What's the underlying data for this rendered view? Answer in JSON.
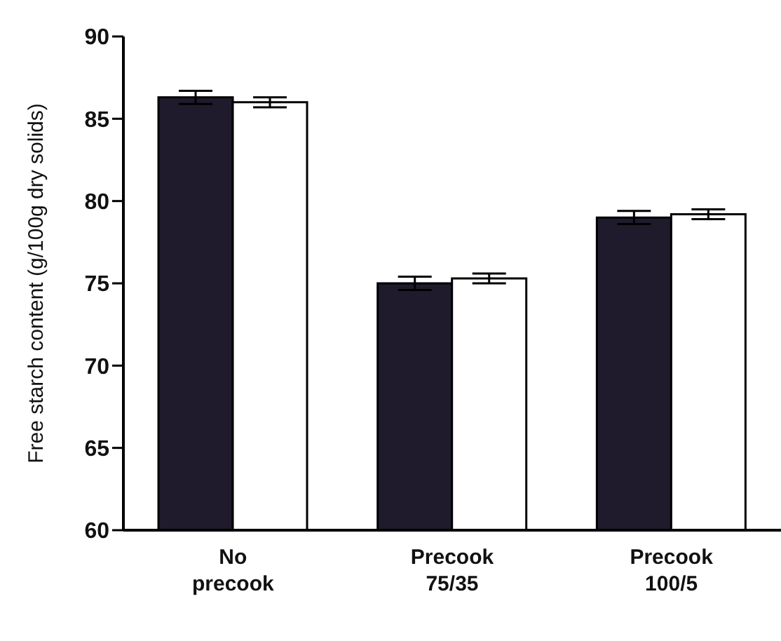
{
  "chart_data": {
    "type": "bar",
    "ylabel": "Free starch content (g/100g dry solids)",
    "categories": [
      "No precook",
      "Precook 75/35",
      "Precook 100/5"
    ],
    "series": [
      {
        "color": "#1f1b2c",
        "values": [
          86.3,
          75.0,
          79.0
        ],
        "errors": [
          0.4,
          0.4,
          0.4
        ]
      },
      {
        "color": "#ffffff",
        "values": [
          86.0,
          75.3,
          79.2
        ],
        "errors": [
          0.3,
          0.3,
          0.3
        ]
      }
    ],
    "ylim": [
      60,
      90
    ],
    "yticks": [
      60,
      65,
      70,
      75,
      80,
      85,
      90
    ],
    "grid": false,
    "legend": false
  }
}
